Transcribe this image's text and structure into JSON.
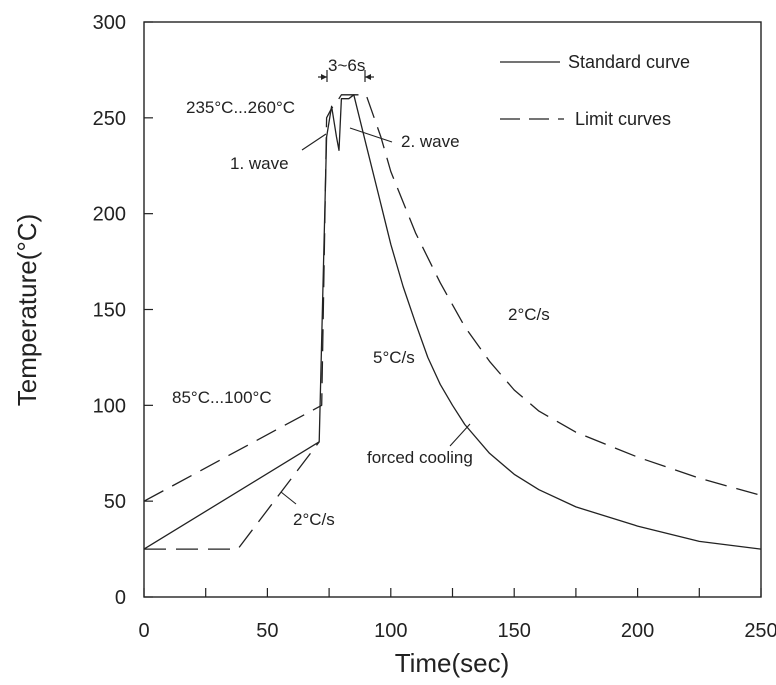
{
  "chart_data": {
    "type": "line",
    "title": "",
    "xlabel": "Time(sec)",
    "ylabel": "Temperature(°C)",
    "xlim": [
      0,
      250
    ],
    "ylim": [
      0,
      300
    ],
    "x_ticks": [
      0,
      50,
      100,
      150,
      200,
      250
    ],
    "x_minor_ticks": [
      25,
      75,
      125,
      175,
      225
    ],
    "y_ticks": [
      0,
      50,
      100,
      150,
      200,
      250,
      300
    ],
    "grid": false,
    "legend_position": "top-right",
    "legend": [
      {
        "label": "Standard curve",
        "style": "solid"
      },
      {
        "label": "Limit curves",
        "style": "dashed"
      }
    ],
    "series": [
      {
        "name": "Standard curve",
        "style": "solid",
        "points": [
          [
            0,
            25
          ],
          [
            71,
            81
          ],
          [
            74,
            240
          ],
          [
            76,
            256
          ],
          [
            78,
            240
          ],
          [
            79,
            233
          ],
          [
            80,
            260
          ],
          [
            83,
            260
          ],
          [
            85,
            262
          ],
          [
            90,
            236
          ],
          [
            95,
            210
          ],
          [
            100,
            184
          ],
          [
            105,
            162
          ],
          [
            110,
            143
          ],
          [
            115,
            125
          ],
          [
            120,
            111
          ],
          [
            125,
            100
          ],
          [
            130,
            90
          ],
          [
            140,
            75
          ],
          [
            150,
            64
          ],
          [
            160,
            56
          ],
          [
            175,
            47
          ],
          [
            200,
            37
          ],
          [
            225,
            29
          ],
          [
            250,
            25
          ]
        ]
      },
      {
        "name": "Limit curves",
        "style": "dashed",
        "points": [
          [
            0,
            50
          ],
          [
            72,
            100
          ],
          [
            74,
            250
          ],
          [
            76,
            255
          ],
          [
            78,
            258
          ],
          [
            80,
            262
          ],
          [
            82,
            262
          ],
          [
            90,
            262
          ],
          [
            96,
            240
          ],
          [
            100,
            222
          ],
          [
            110,
            190
          ],
          [
            120,
            164
          ],
          [
            130,
            141
          ],
          [
            140,
            123
          ],
          [
            150,
            108
          ],
          [
            160,
            97
          ],
          [
            175,
            86
          ],
          [
            200,
            73
          ],
          [
            225,
            62
          ],
          [
            250,
            53
          ]
        ]
      },
      {
        "name": "",
        "style": "dashed",
        "points": [
          [
            0,
            25
          ],
          [
            38,
            25
          ],
          [
            71,
            81
          ]
        ]
      }
    ],
    "annotations": [
      {
        "text": "3~6s"
      },
      {
        "text": "235°C...260°C"
      },
      {
        "text": "1. wave"
      },
      {
        "text": "2. wave"
      },
      {
        "text": "2°C/s"
      },
      {
        "text": "5°C/s"
      },
      {
        "text": "85°C...100°C"
      },
      {
        "text": "forced cooling"
      },
      {
        "text": "2°C/s"
      }
    ]
  },
  "colors": {
    "line": "#222222",
    "axis": "#222222",
    "background": "#ffffff"
  }
}
